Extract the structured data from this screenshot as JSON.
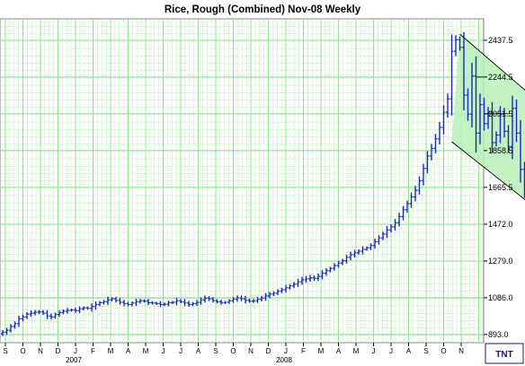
{
  "chart_data": {
    "type": "ohlc",
    "title": "Rice, Rough (Combined) Nov-08  Weekly",
    "y_ticks": [
      893.0,
      1086.0,
      1279.0,
      1472.0,
      1665.5,
      1858.5,
      2051.5,
      2244.5,
      2437.5
    ],
    "ylim": [
      850,
      2550
    ],
    "x_month_labels": [
      "S",
      "O",
      "N",
      "D",
      "J",
      "F",
      "M",
      "A",
      "M",
      "J",
      "J",
      "A",
      "S",
      "O",
      "N",
      "D",
      "J",
      "F",
      "M",
      "A",
      "M",
      "J",
      "J",
      "A",
      "S",
      "O",
      "N"
    ],
    "year_labels": [
      {
        "label": "2007",
        "month_index": 4
      },
      {
        "label": "2008",
        "month_index": 16
      }
    ],
    "month_start": "2006-09",
    "grid": true,
    "bar_color": "#1c2bb8",
    "grid_color": "#8fdc8f",
    "bg_color": "#ffffff",
    "channel_color": "#b8f0b8",
    "weekly_closes": [
      905,
      915,
      935,
      950,
      975,
      985,
      1000,
      1005,
      1010,
      1012,
      1005,
      990,
      985,
      998,
      1008,
      1015,
      1020,
      1022,
      1018,
      1028,
      1033,
      1030,
      1040,
      1050,
      1060,
      1065,
      1075,
      1080,
      1072,
      1062,
      1055,
      1050,
      1058,
      1065,
      1070,
      1068,
      1060,
      1058,
      1055,
      1050,
      1052,
      1060,
      1062,
      1070,
      1065,
      1058,
      1050,
      1055,
      1062,
      1075,
      1083,
      1080,
      1070,
      1065,
      1060,
      1062,
      1070,
      1078,
      1085,
      1080,
      1072,
      1068,
      1070,
      1078,
      1085,
      1095,
      1105,
      1110,
      1120,
      1128,
      1138,
      1148,
      1158,
      1170,
      1180,
      1185,
      1190,
      1188,
      1198,
      1215,
      1228,
      1240,
      1255,
      1268,
      1280,
      1298,
      1312,
      1322,
      1330,
      1340,
      1348,
      1360,
      1380,
      1400,
      1420,
      1442,
      1458,
      1480,
      1512,
      1548,
      1580,
      1615,
      1650,
      1700,
      1765,
      1830,
      1870,
      1920,
      1980,
      2060,
      2130,
      2380,
      2440,
      2400,
      2150,
      2050,
      2250,
      1950,
      2100,
      2000,
      2060,
      1900,
      1940,
      2050,
      1960,
      1880,
      2080,
      1950,
      1760,
      1650,
      1600,
      1640,
      1700,
      1810,
      1860,
      1900,
      1880,
      1900,
      1940,
      1920
    ],
    "annotations": {
      "horizontal_levels": [
        2244.5,
        2051.5
      ],
      "channel": "descending price channel (Apr–Oct 2008)"
    },
    "legend": "none",
    "source_logo": "TNT"
  }
}
